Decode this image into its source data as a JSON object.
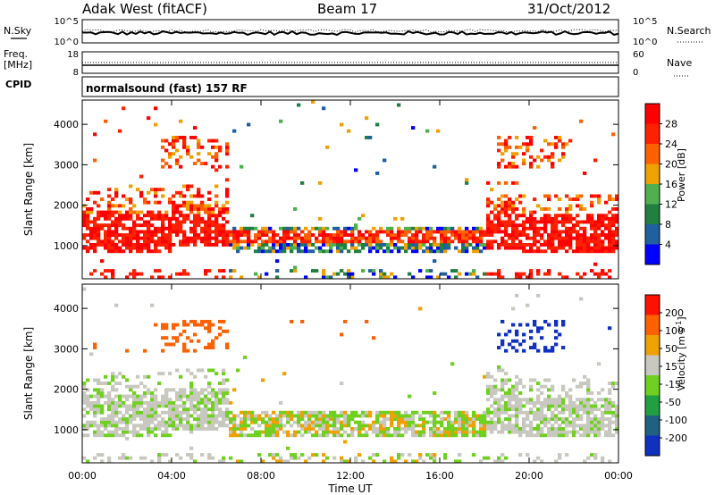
{
  "header": {
    "station": "Adak West (fitACF)",
    "beam": "Beam 17",
    "date": "31/Oct/2012"
  },
  "strip_panels": {
    "noise": {
      "left_label": "N.Sky",
      "right_label": "N.Search",
      "left_ticks": [
        "10^5",
        "10^0"
      ],
      "right_ticks": [
        "10^5",
        "10^0"
      ]
    },
    "freq": {
      "left_label_1": "Freq.",
      "left_label_2": "[MHz]",
      "right_label": "Nave",
      "left_ticks": [
        "18",
        "8"
      ],
      "right_ticks": [
        "60",
        "0"
      ]
    },
    "cpid": {
      "left_label": "CPID",
      "value": "normalsound (fast) 157 RF"
    }
  },
  "chart_data": [
    {
      "type": "heatmap",
      "name": "power",
      "ylabel": "Slant Range [km]",
      "yticks": [
        "4000",
        "3000",
        "2000",
        "1000"
      ],
      "ylim": [
        180,
        4600
      ],
      "colorbar_label": "Power [dB]",
      "colorbar_ticks": [
        "28",
        "24",
        "20",
        "16",
        "12",
        "8",
        "4"
      ],
      "colors": [
        "#0000ff",
        "#2060a0",
        "#208040",
        "#50b050",
        "#f0a000",
        "#ff6000",
        "#ff2000",
        "#ff0000"
      ]
    },
    {
      "type": "heatmap",
      "name": "velocity",
      "ylabel": "Slant Range [km]",
      "yticks": [
        "4000",
        "3000",
        "2000",
        "1000"
      ],
      "ylim": [
        180,
        4600
      ],
      "colorbar_label": "Velocity [m s",
      "colorbar_label_sup": "-1",
      "colorbar_label_end": "]",
      "colorbar_ticks": [
        "200",
        "100",
        "50",
        "15",
        "-15",
        "-50",
        "-100",
        "-200"
      ],
      "colors": [
        "#1030c0",
        "#206080",
        "#20a040",
        "#70d020",
        "#c8c8c0",
        "#f0a000",
        "#ff6000",
        "#ff1000"
      ]
    }
  ],
  "xaxis": {
    "ticks": [
      "00:00",
      "04:00",
      "08:00",
      "12:00",
      "16:00",
      "20:00",
      "00:00"
    ],
    "label": "Time UT"
  }
}
